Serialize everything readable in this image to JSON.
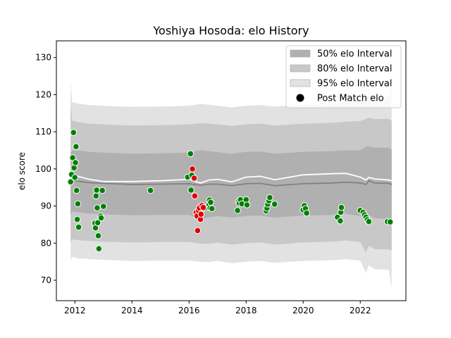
{
  "chart_data": {
    "type": "scatter",
    "title": "Yoshiya Hosoda: elo History",
    "xlabel": "",
    "ylabel": "elo score",
    "xlim": [
      2011.35,
      2023.6
    ],
    "ylim": [
      64.5,
      134.5
    ],
    "xticks": [
      2012,
      2014,
      2016,
      2018,
      2020,
      2022
    ],
    "yticks": [
      70,
      80,
      90,
      100,
      110,
      120,
      130
    ],
    "legend_position": "top-right",
    "legend": [
      {
        "label": "50% elo Interval",
        "color": "#b0b0b0"
      },
      {
        "label": "80% elo Interval",
        "color": "#c8c8c8"
      },
      {
        "label": "95% elo Interval",
        "color": "#e2e2e2"
      },
      {
        "label": "Post Match elo",
        "color": "#000000"
      }
    ],
    "colors": {
      "win": "#008000",
      "loss": "#e00000",
      "mean_line": "#808080",
      "post_line": "#ffffff"
    },
    "bands": {
      "x": [
        2011.85,
        2011.9,
        2012.1,
        2012.5,
        2013.0,
        2014.0,
        2015.0,
        2016.0,
        2016.4,
        2016.7,
        2017.0,
        2017.5,
        2018.0,
        2018.5,
        2019.0,
        2020.0,
        2021.0,
        2021.5,
        2022.0,
        2022.2,
        2022.3,
        2022.5,
        2023.0,
        2023.1
      ],
      "mean": [
        95.9,
        96.8,
        96.7,
        96.3,
        96.1,
        95.8,
        95.9,
        96.0,
        95.6,
        95.9,
        95.9,
        95.5,
        96.0,
        96.1,
        95.5,
        96.0,
        96.2,
        96.4,
        96.2,
        95.8,
        96.8,
        96.2,
        96.1,
        95.8
      ],
      "post": [
        97.5,
        98.4,
        98.0,
        97.2,
        96.6,
        96.6,
        96.8,
        97.2,
        96.2,
        97.0,
        97.2,
        96.5,
        97.8,
        98.0,
        97.1,
        98.4,
        98.7,
        98.8,
        97.8,
        97.0,
        97.7,
        97.3,
        97.0,
        96.8
      ],
      "p50_low": [
        87.5,
        88.5,
        88.3,
        88.0,
        87.8,
        87.5,
        87.6,
        87.6,
        86.3,
        87.0,
        87.3,
        86.9,
        87.3,
        87.4,
        86.9,
        87.4,
        87.6,
        87.9,
        87.3,
        85.5,
        87.5,
        86.7,
        86.5,
        86.4
      ],
      "p50_high": [
        104.3,
        105.0,
        105.0,
        104.6,
        104.4,
        104.1,
        104.2,
        104.4,
        105.0,
        104.8,
        104.5,
        104.1,
        104.6,
        104.7,
        104.1,
        104.6,
        104.8,
        105.0,
        105.0,
        106.0,
        106.1,
        105.7,
        105.7,
        105.2
      ],
      "p80_low": [
        80.0,
        81.0,
        80.8,
        80.6,
        80.4,
        80.2,
        80.3,
        80.3,
        79.8,
        79.8,
        80.1,
        79.6,
        80.0,
        80.2,
        79.6,
        80.2,
        80.4,
        80.7,
        80.3,
        77.5,
        79.3,
        78.4,
        78.3,
        78.0
      ],
      "p80_high": [
        118.0,
        113.0,
        112.6,
        112.2,
        112.0,
        111.7,
        111.8,
        112.0,
        112.3,
        112.2,
        112.0,
        111.6,
        112.0,
        112.2,
        111.7,
        112.2,
        112.4,
        112.7,
        112.9,
        113.5,
        113.8,
        113.4,
        113.5,
        112.9
      ],
      "p95_low": [
        75.2,
        76.3,
        75.9,
        75.7,
        75.5,
        75.2,
        75.3,
        75.3,
        75.0,
        74.9,
        75.2,
        74.6,
        75.0,
        75.2,
        74.7,
        75.2,
        75.4,
        75.7,
        75.3,
        72.0,
        74.0,
        73.0,
        72.8,
        68.0
      ],
      "p95_high": [
        123.5,
        118.0,
        117.6,
        117.2,
        117.0,
        116.7,
        116.8,
        117.0,
        117.5,
        117.3,
        117.0,
        116.6,
        117.0,
        117.2,
        116.8,
        117.3,
        117.5,
        117.9,
        118.2,
        119.3,
        119.3,
        119.0,
        119.3,
        124.5
      ]
    },
    "wins": [
      [
        2011.85,
        96.5
      ],
      [
        2011.88,
        98.5
      ],
      [
        2011.92,
        103.0
      ],
      [
        2011.95,
        109.8
      ],
      [
        2011.97,
        100.3
      ],
      [
        2012.0,
        97.7
      ],
      [
        2012.02,
        101.7
      ],
      [
        2012.04,
        106.0
      ],
      [
        2012.06,
        94.2
      ],
      [
        2012.08,
        86.4
      ],
      [
        2012.1,
        90.6
      ],
      [
        2012.13,
        84.3
      ],
      [
        2012.7,
        85.4
      ],
      [
        2012.72,
        84.1
      ],
      [
        2012.74,
        92.7
      ],
      [
        2012.76,
        94.3
      ],
      [
        2012.78,
        89.5
      ],
      [
        2012.8,
        85.5
      ],
      [
        2012.82,
        82.0
      ],
      [
        2012.84,
        78.5
      ],
      [
        2012.9,
        87.3
      ],
      [
        2012.92,
        86.8
      ],
      [
        2012.96,
        94.2
      ],
      [
        2013.0,
        89.9
      ],
      [
        2014.65,
        94.2
      ],
      [
        2015.95,
        97.8
      ],
      [
        2016.05,
        104.1
      ],
      [
        2016.07,
        94.3
      ],
      [
        2016.1,
        98.3
      ],
      [
        2016.55,
        89.4
      ],
      [
        2016.7,
        90.3
      ],
      [
        2016.72,
        91.6
      ],
      [
        2016.74,
        89.5
      ],
      [
        2016.76,
        91.0
      ],
      [
        2016.8,
        89.3
      ],
      [
        2017.7,
        88.8
      ],
      [
        2017.73,
        91.2
      ],
      [
        2017.76,
        90.8
      ],
      [
        2017.8,
        91.7
      ],
      [
        2017.85,
        90.6
      ],
      [
        2018.0,
        91.7
      ],
      [
        2018.03,
        90.3
      ],
      [
        2018.7,
        88.7
      ],
      [
        2018.73,
        89.4
      ],
      [
        2018.76,
        90.5
      ],
      [
        2018.8,
        91.4
      ],
      [
        2018.83,
        92.3
      ],
      [
        2019.0,
        90.5
      ],
      [
        2020.0,
        89.0
      ],
      [
        2020.04,
        90.1
      ],
      [
        2020.08,
        89.3
      ],
      [
        2020.12,
        88.1
      ],
      [
        2021.2,
        87.0
      ],
      [
        2021.3,
        86.0
      ],
      [
        2021.32,
        88.3
      ],
      [
        2021.34,
        89.6
      ],
      [
        2022.0,
        88.8
      ],
      [
        2022.1,
        88.3
      ],
      [
        2022.15,
        87.6
      ],
      [
        2022.2,
        87.0
      ],
      [
        2022.25,
        86.3
      ],
      [
        2022.3,
        85.8
      ],
      [
        2022.95,
        85.8
      ],
      [
        2023.05,
        85.7
      ]
    ],
    "losses": [
      [
        2016.12,
        100.0
      ],
      [
        2016.18,
        97.5
      ],
      [
        2016.2,
        92.7
      ],
      [
        2016.25,
        88.3
      ],
      [
        2016.28,
        87.3
      ],
      [
        2016.3,
        83.4
      ],
      [
        2016.33,
        88.8
      ],
      [
        2016.36,
        89.5
      ],
      [
        2016.4,
        86.4
      ],
      [
        2016.42,
        87.8
      ],
      [
        2016.45,
        90.1
      ],
      [
        2016.5,
        89.6
      ]
    ]
  }
}
